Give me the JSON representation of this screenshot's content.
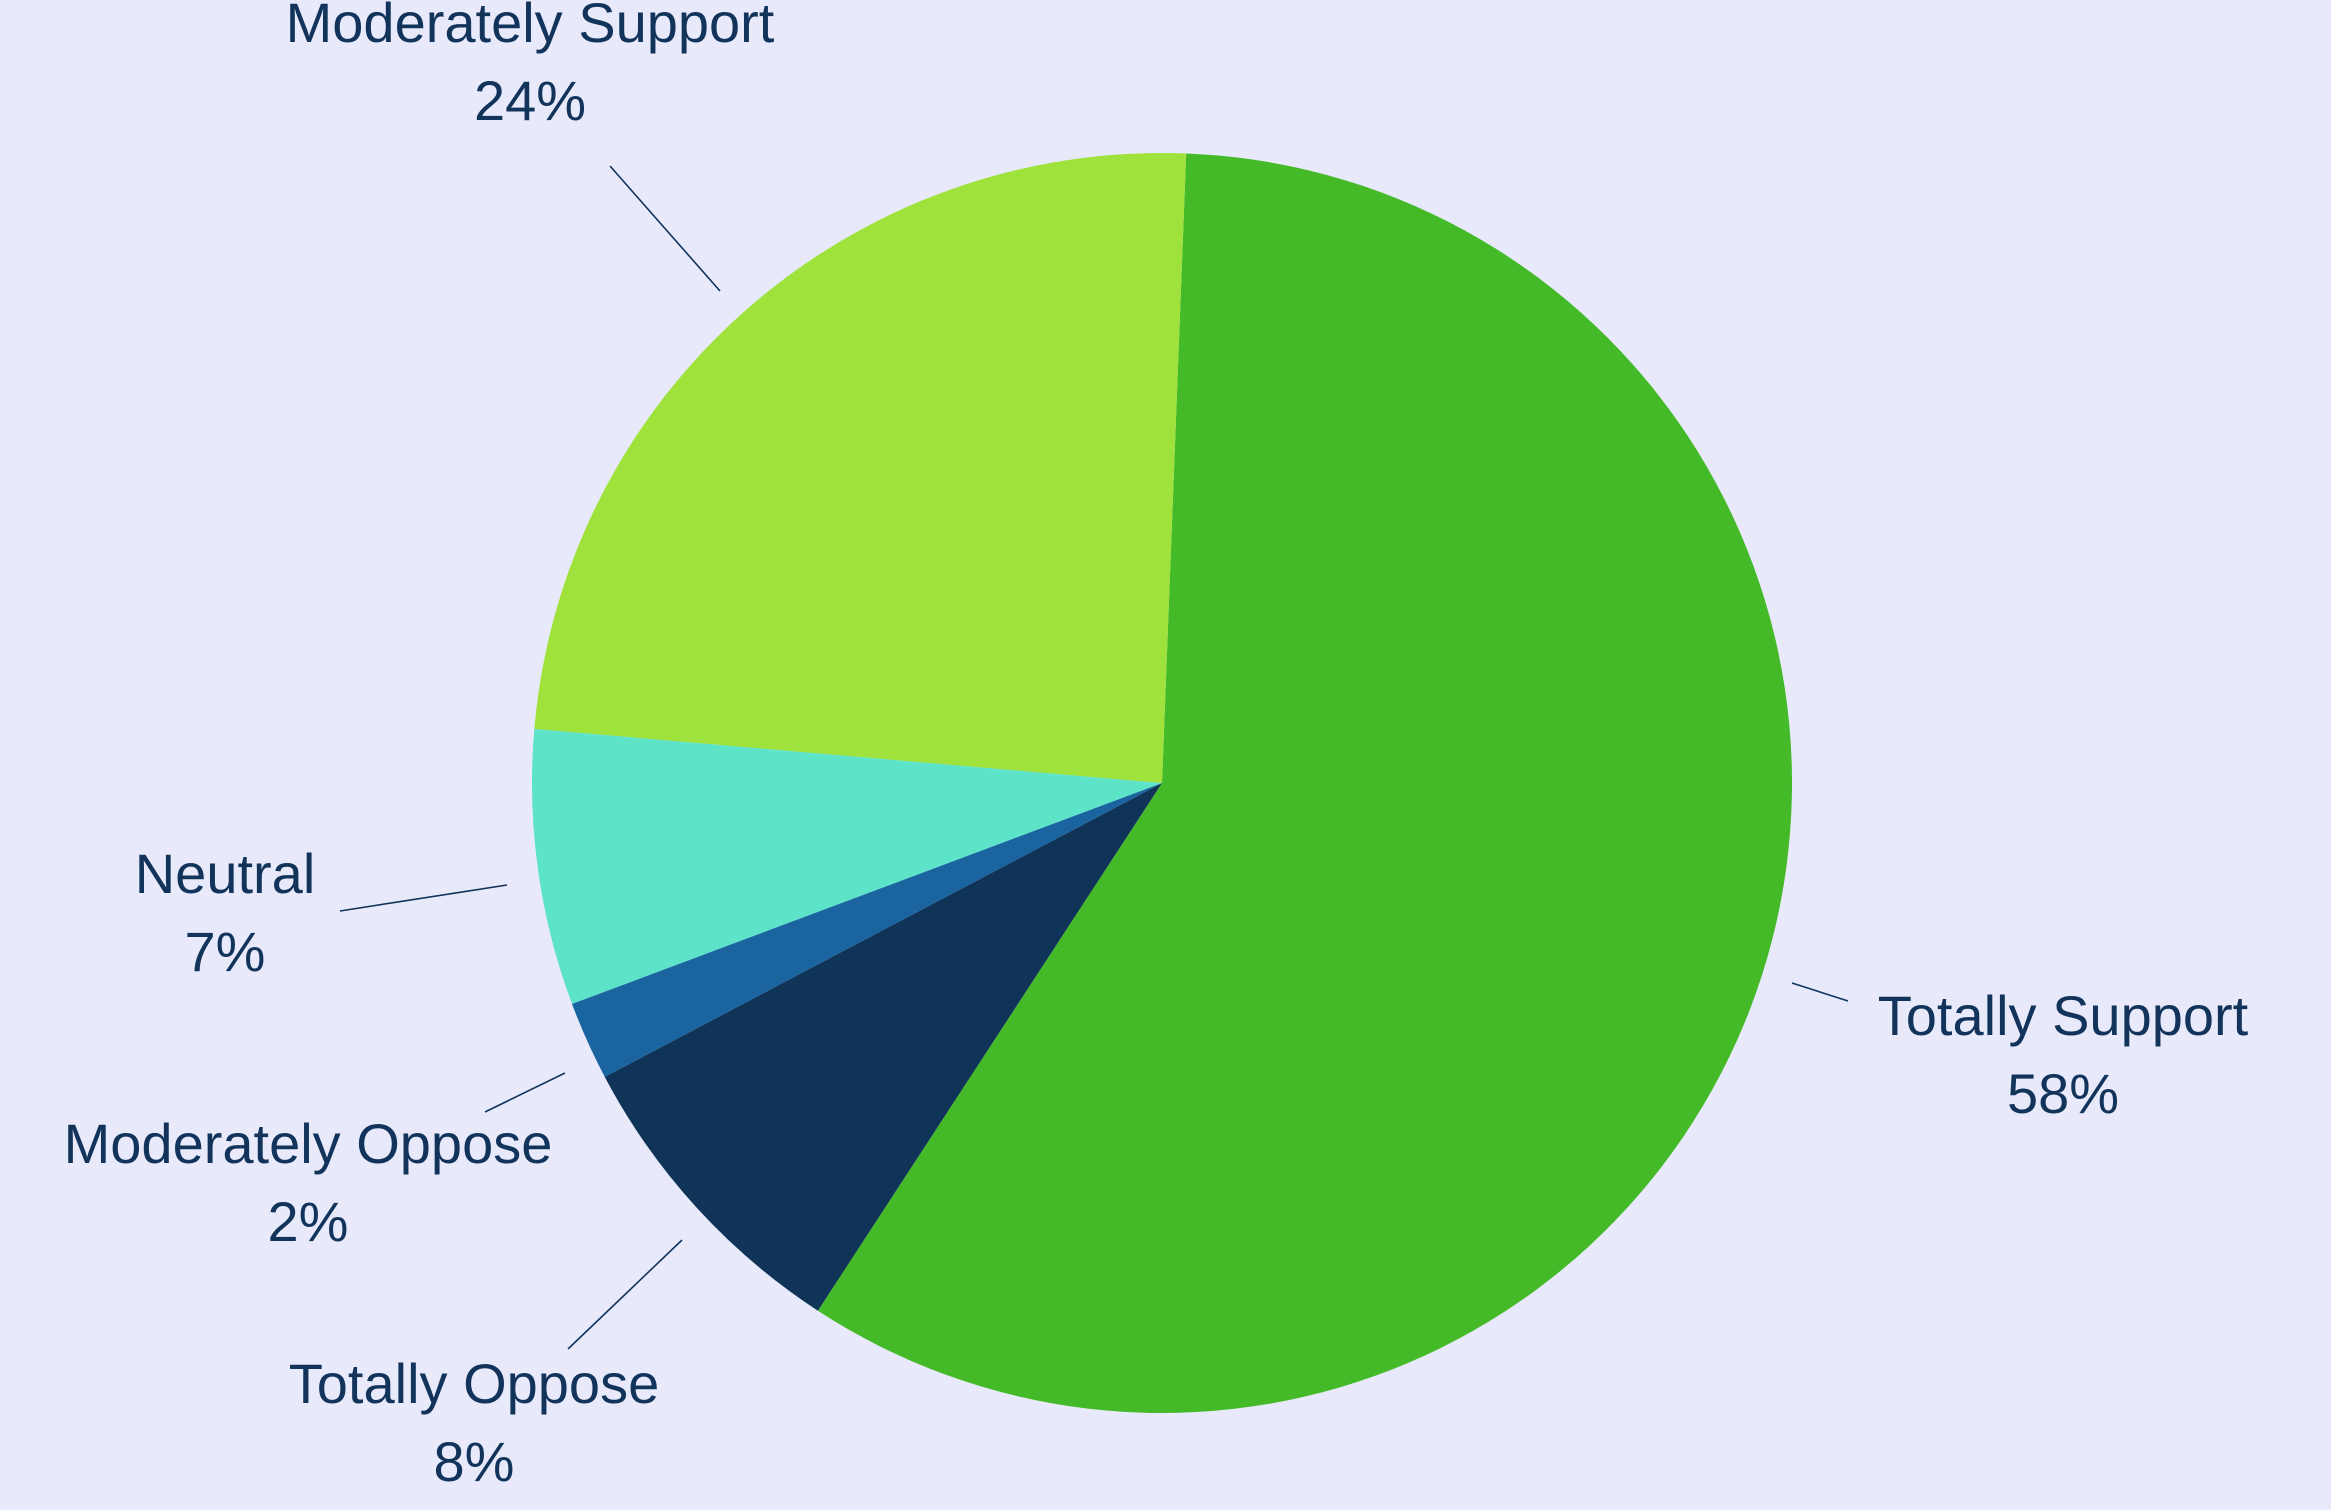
{
  "chart_data": {
    "type": "pie",
    "title": "",
    "slices": [
      {
        "label": "Totally Support",
        "value": 58,
        "value_label": "58%",
        "color": "#45ba28"
      },
      {
        "label": "Totally Oppose",
        "value": 8,
        "value_label": "8%",
        "color": "#0f3457"
      },
      {
        "label": "Moderately Oppose",
        "value": 2,
        "value_label": "2%",
        "color": "#1a64a0"
      },
      {
        "label": "Neutral",
        "value": 7,
        "value_label": "7%",
        "color": "#5ce3c8"
      },
      {
        "label": "Moderately Support",
        "value": 24,
        "value_label": "24%",
        "color": "#a0e23c"
      }
    ],
    "legend": "none",
    "label_color": "#12335a",
    "background": "#e8eafc"
  }
}
